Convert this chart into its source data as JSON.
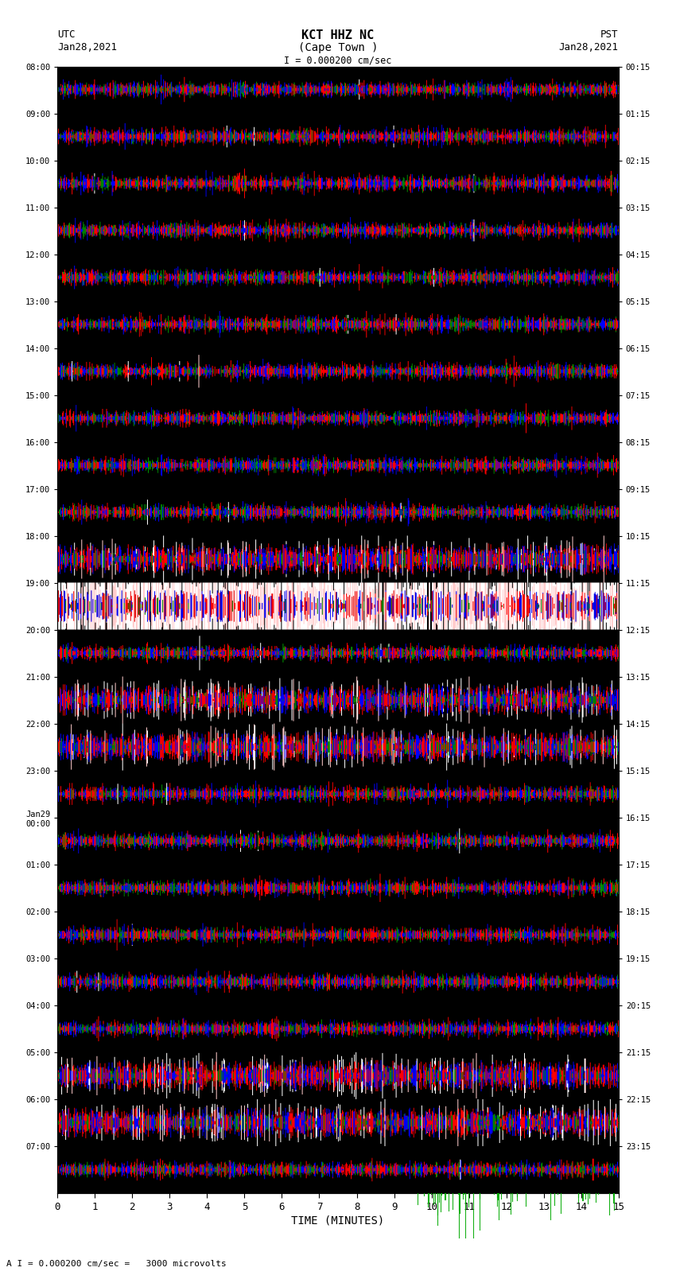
{
  "title_line1": "KCT HHZ NC",
  "title_line2": "(Cape Town )",
  "title_scale": "I = 0.000200 cm/sec",
  "left_timezone": "UTC",
  "left_date": "Jan28,2021",
  "right_timezone": "PST",
  "right_date": "Jan28,2021",
  "footer_scale": "A I = 0.000200 cm/sec =   3000 microvolts",
  "xlabel": "TIME (MINUTES)",
  "ylabel_left_times": [
    "08:00",
    "09:00",
    "10:00",
    "11:00",
    "12:00",
    "13:00",
    "14:00",
    "15:00",
    "16:00",
    "17:00",
    "18:00",
    "19:00",
    "20:00",
    "21:00",
    "22:00",
    "23:00",
    "Jan29\n00:00",
    "01:00",
    "02:00",
    "03:00",
    "04:00",
    "05:00",
    "06:00",
    "07:00"
  ],
  "ylabel_right_times": [
    "00:15",
    "01:15",
    "02:15",
    "03:15",
    "04:15",
    "05:15",
    "06:15",
    "07:15",
    "08:15",
    "09:15",
    "10:15",
    "11:15",
    "12:15",
    "13:15",
    "14:15",
    "15:15",
    "16:15",
    "17:15",
    "18:15",
    "19:15",
    "20:15",
    "21:15",
    "22:15",
    "23:15"
  ],
  "num_rows": 24,
  "minutes_per_row": 15,
  "seed": 42,
  "large_event_row": 11,
  "large_event_amplitude": 5.0,
  "medium_event_rows": [
    10,
    13,
    14,
    21,
    22
  ],
  "base_amplitude": 1.0
}
